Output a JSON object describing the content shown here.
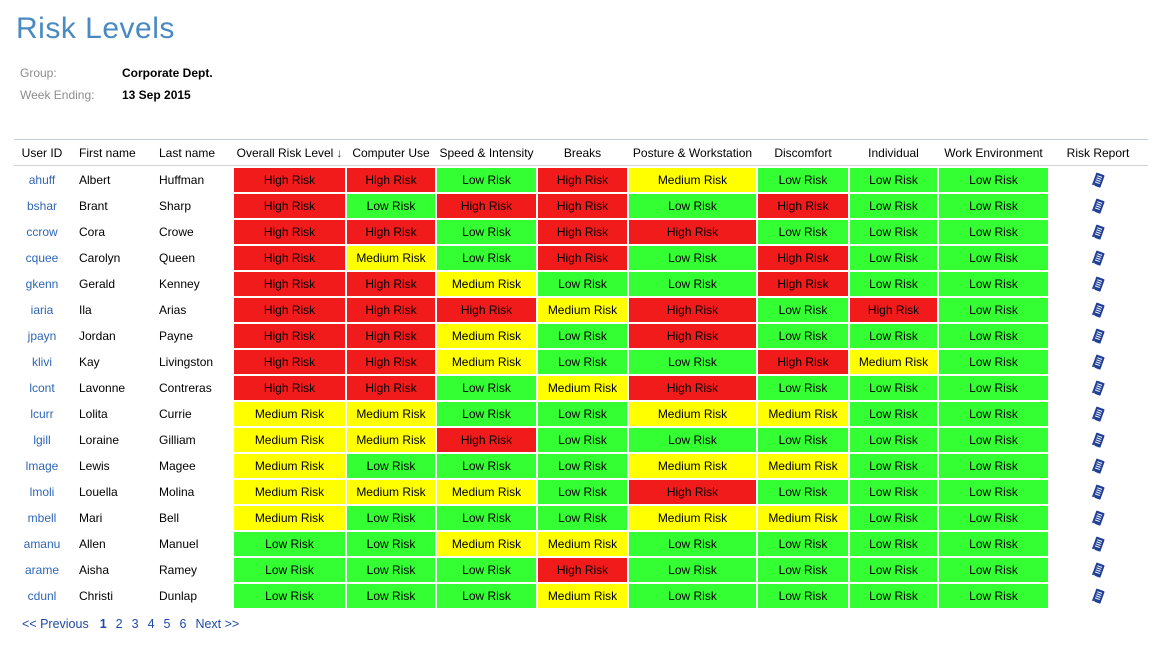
{
  "page": {
    "title": "Risk Levels"
  },
  "meta": {
    "group_label": "Group:",
    "group_value": "Corporate Dept.",
    "week_label": "Week Ending:",
    "week_value": "13 Sep 2015"
  },
  "risk_colors": {
    "High Risk": "#f11b1b",
    "Medium Risk": "#ffff00",
    "Low Risk": "#33ff33"
  },
  "table": {
    "columns": [
      "User ID",
      "First name",
      "Last name",
      "Overall Risk Level",
      "Computer Use",
      "Speed & Intensity",
      "Breaks",
      "Posture & Workstation",
      "Discomfort",
      "Individual",
      "Work Environment",
      "Risk Report"
    ],
    "sort": {
      "column": "Overall Risk Level",
      "direction": "descending",
      "icon": "↓"
    },
    "risk_report_icon": "report-icon",
    "rows": [
      {
        "user_id": "ahuff",
        "first_name": "Albert",
        "last_name": "Huffman",
        "risks": [
          "High Risk",
          "High Risk",
          "Low Risk",
          "High Risk",
          "Medium Risk",
          "Low Risk",
          "Low Risk",
          "Low Risk"
        ]
      },
      {
        "user_id": "bshar",
        "first_name": "Brant",
        "last_name": "Sharp",
        "risks": [
          "High Risk",
          "Low Risk",
          "High Risk",
          "High Risk",
          "Low Risk",
          "High Risk",
          "Low Risk",
          "Low Risk"
        ]
      },
      {
        "user_id": "ccrow",
        "first_name": "Cora",
        "last_name": "Crowe",
        "risks": [
          "High Risk",
          "High Risk",
          "Low Risk",
          "High Risk",
          "High Risk",
          "Low Risk",
          "Low Risk",
          "Low Risk"
        ]
      },
      {
        "user_id": "cquee",
        "first_name": "Carolyn",
        "last_name": "Queen",
        "risks": [
          "High Risk",
          "Medium Risk",
          "Low Risk",
          "High Risk",
          "Low Risk",
          "High Risk",
          "Low Risk",
          "Low Risk"
        ]
      },
      {
        "user_id": "gkenn",
        "first_name": "Gerald",
        "last_name": "Kenney",
        "risks": [
          "High Risk",
          "High Risk",
          "Medium Risk",
          "Low Risk",
          "Low Risk",
          "High Risk",
          "Low Risk",
          "Low Risk"
        ]
      },
      {
        "user_id": "iaria",
        "first_name": "Ila",
        "last_name": "Arias",
        "risks": [
          "High Risk",
          "High Risk",
          "High Risk",
          "Medium Risk",
          "High Risk",
          "Low Risk",
          "High Risk",
          "Low Risk"
        ]
      },
      {
        "user_id": "jpayn",
        "first_name": "Jordan",
        "last_name": "Payne",
        "risks": [
          "High Risk",
          "High Risk",
          "Medium Risk",
          "Low Risk",
          "High Risk",
          "Low Risk",
          "Low Risk",
          "Low Risk"
        ]
      },
      {
        "user_id": "klivi",
        "first_name": "Kay",
        "last_name": "Livingston",
        "risks": [
          "High Risk",
          "High Risk",
          "Medium Risk",
          "Low Risk",
          "Low Risk",
          "High Risk",
          "Medium Risk",
          "Low Risk"
        ]
      },
      {
        "user_id": "lcont",
        "first_name": "Lavonne",
        "last_name": "Contreras",
        "risks": [
          "High Risk",
          "High Risk",
          "Low Risk",
          "Medium Risk",
          "High Risk",
          "Low Risk",
          "Low Risk",
          "Low Risk"
        ]
      },
      {
        "user_id": "lcurr",
        "first_name": "Lolita",
        "last_name": "Currie",
        "risks": [
          "Medium Risk",
          "Medium Risk",
          "Low Risk",
          "Low Risk",
          "Medium Risk",
          "Medium Risk",
          "Low Risk",
          "Low Risk"
        ]
      },
      {
        "user_id": "lgill",
        "first_name": "Loraine",
        "last_name": "Gilliam",
        "risks": [
          "Medium Risk",
          "Medium Risk",
          "High Risk",
          "Low Risk",
          "Low Risk",
          "Low Risk",
          "Low Risk",
          "Low Risk"
        ]
      },
      {
        "user_id": "lmage",
        "first_name": "Lewis",
        "last_name": "Magee",
        "risks": [
          "Medium Risk",
          "Low Risk",
          "Low Risk",
          "Low Risk",
          "Medium Risk",
          "Medium Risk",
          "Low Risk",
          "Low Risk"
        ]
      },
      {
        "user_id": "lmoli",
        "first_name": "Louella",
        "last_name": "Molina",
        "risks": [
          "Medium Risk",
          "Medium Risk",
          "Medium Risk",
          "Low Risk",
          "High Risk",
          "Low Risk",
          "Low Risk",
          "Low Risk"
        ]
      },
      {
        "user_id": "mbell",
        "first_name": "Mari",
        "last_name": "Bell",
        "risks": [
          "Medium Risk",
          "Low Risk",
          "Low Risk",
          "Low Risk",
          "Medium Risk",
          "Medium Risk",
          "Low Risk",
          "Low Risk"
        ]
      },
      {
        "user_id": "amanu",
        "first_name": "Allen",
        "last_name": "Manuel",
        "risks": [
          "Low Risk",
          "Low Risk",
          "Medium Risk",
          "Medium Risk",
          "Low Risk",
          "Low Risk",
          "Low Risk",
          "Low Risk"
        ]
      },
      {
        "user_id": "arame",
        "first_name": "Aisha",
        "last_name": "Ramey",
        "risks": [
          "Low Risk",
          "Low Risk",
          "Low Risk",
          "High Risk",
          "Low Risk",
          "Low Risk",
          "Low Risk",
          "Low Risk"
        ]
      },
      {
        "user_id": "cdunl",
        "first_name": "Christi",
        "last_name": "Dunlap",
        "risks": [
          "Low Risk",
          "Low Risk",
          "Low Risk",
          "Medium Risk",
          "Low Risk",
          "Low Risk",
          "Low Risk",
          "Low Risk"
        ]
      }
    ]
  },
  "pagination": {
    "previous": "<< Previous",
    "pages": [
      "1",
      "2",
      "3",
      "4",
      "5",
      "6"
    ],
    "current": "1",
    "next": "Next >>"
  }
}
